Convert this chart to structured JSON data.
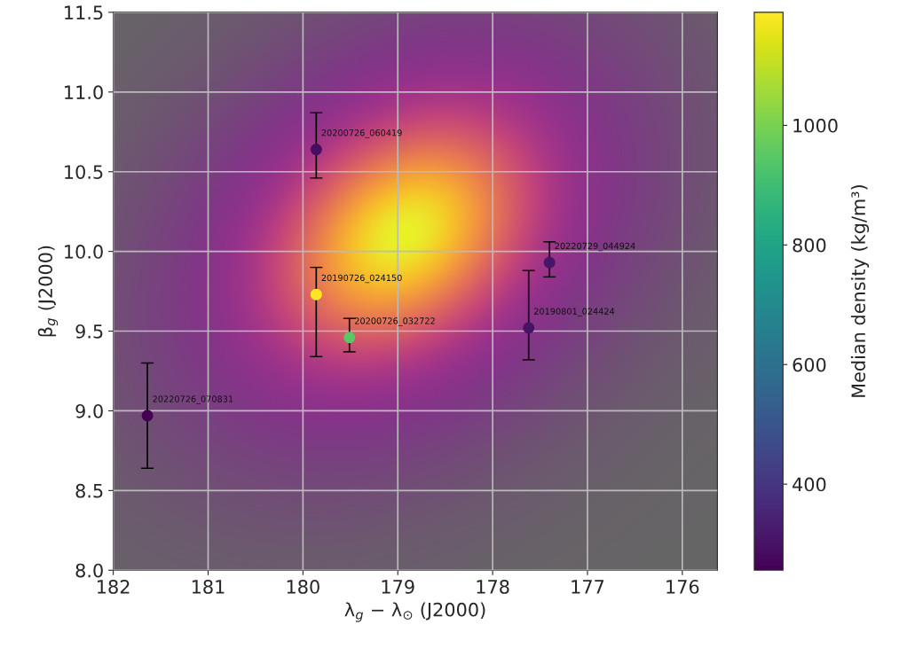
{
  "chart_data": {
    "type": "scatter",
    "xlabel": "λ$_{g}$ − λ$_{⊙}$ (J2000)",
    "ylabel": "β$_{g}$ (J2000)",
    "clabel": "Median density (kg/m³)",
    "x": [
      181.64,
      179.86,
      179.86,
      179.51,
      177.62,
      177.4
    ],
    "values": [
      8.97,
      10.64,
      9.73,
      9.46,
      9.52,
      9.93
    ],
    "errors": [
      [
        8.64,
        9.3
      ],
      [
        10.46,
        10.87
      ],
      [
        9.34,
        9.9
      ],
      [
        9.37,
        9.58
      ],
      [
        9.32,
        9.88
      ],
      [
        9.84,
        10.06
      ]
    ],
    "cvalues": [
      256,
      290,
      1189,
      950,
      300,
      310
    ],
    "clim": [
      256,
      1189
    ],
    "cticks": [
      400,
      600,
      800,
      1000
    ],
    "xlim": [
      182,
      175.63
    ],
    "ylim": [
      8.0,
      11.5
    ],
    "xticks": [
      182,
      181,
      180,
      179,
      178,
      177,
      176
    ],
    "yticks": [
      {
        "value": 8.0,
        "label": "8.0"
      },
      {
        "value": 8.5,
        "label": "8.5"
      },
      {
        "value": 9.0,
        "label": "9.0"
      },
      {
        "value": 9.5,
        "label": "9.5"
      },
      {
        "value": 10.0,
        "label": "10.0"
      },
      {
        "value": 10.5,
        "label": "10.5"
      },
      {
        "value": 11.0,
        "label": "11.0"
      },
      {
        "value": 11.5,
        "label": "11.5"
      }
    ],
    "grid": true,
    "marker": "circle",
    "annotations": [
      {
        "text": "20220726_070831",
        "x": 181.64,
        "y": 8.97
      },
      {
        "text": "20200726_060419",
        "x": 179.86,
        "y": 10.64
      },
      {
        "text": "20190726_024150",
        "x": 179.86,
        "y": 9.73
      },
      {
        "text": "20200726_032722",
        "x": 179.51,
        "y": 9.46
      },
      {
        "text": "20190801_024424",
        "x": 177.62,
        "y": 9.52
      },
      {
        "text": "20220729_044924",
        "x": 177.4,
        "y": 9.93
      }
    ]
  }
}
